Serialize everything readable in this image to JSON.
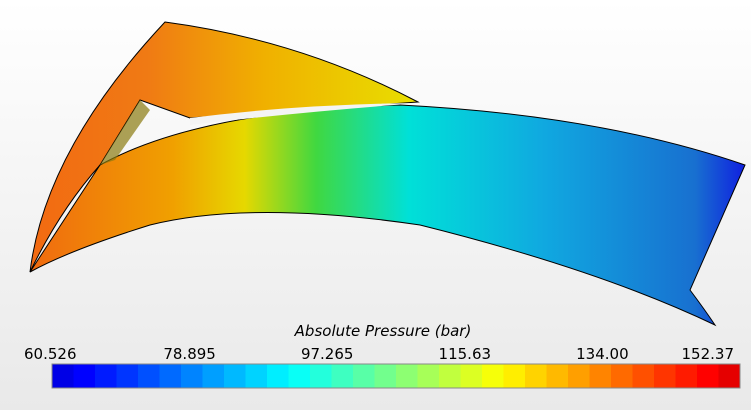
{
  "colorbar": {
    "title": "Absolute Pressure (bar)",
    "tick_labels": [
      "60.526",
      "78.895",
      "97.265",
      "115.63",
      "134.00",
      "152.37"
    ]
  }
}
